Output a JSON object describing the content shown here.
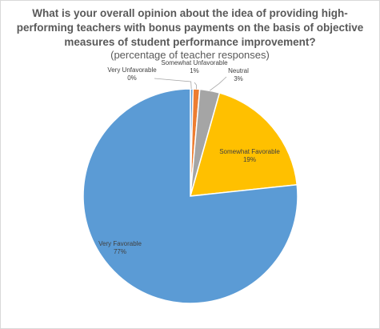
{
  "chart_data": {
    "type": "pie",
    "title": "What is your overall opinion about the idea of providing high-performing teachers with bonus payments on the basis of objective measures of student performance improvement?",
    "subtitle": "(percentage of teacher responses)",
    "slices": [
      {
        "label": "Very Unfavorable",
        "value": 0.4,
        "display": "0%",
        "color": "#5b9bd5"
      },
      {
        "label": "Somewhat Unfavorable",
        "value": 1,
        "display": "1%",
        "color": "#ed7d31"
      },
      {
        "label": "Neutral",
        "value": 3,
        "display": "3%",
        "color": "#a5a5a5"
      },
      {
        "label": "Somewhat Favorable",
        "value": 19,
        "display": "19%",
        "color": "#ffc000"
      },
      {
        "label": "Very Favorable",
        "value": 77,
        "display": "77%",
        "color": "#5b9bd5"
      }
    ]
  }
}
